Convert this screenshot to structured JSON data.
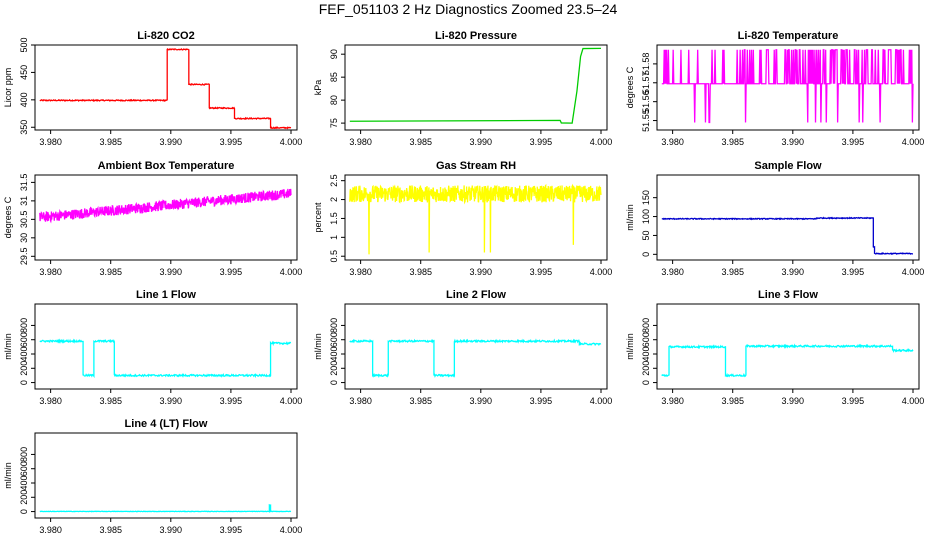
{
  "page": {
    "title": "FEF_051103  2 Hz Diagnostics Zoomed 23.5–24"
  },
  "colors": {
    "red": "#ff0000",
    "green": "#00cc00",
    "magenta": "#ff00ff",
    "yellow": "#ffff00",
    "blue": "#0000cc",
    "cyan": "#00ffff"
  },
  "chart_data": [
    {
      "type": "line",
      "title": "Li-820 CO2",
      "ylabel": "Licor ppm",
      "color": "red",
      "xlim": [
        3.9787,
        4.0005
      ],
      "ylim": [
        345,
        500
      ],
      "xticks": [
        3.98,
        3.985,
        3.99,
        3.995,
        4.0
      ],
      "xtick_labels": [
        "3.980",
        "3.985",
        "3.990",
        "3.995",
        "4.000"
      ],
      "yticks": [
        350,
        400,
        450,
        500
      ],
      "ytick_labels": [
        "350",
        "400",
        "450",
        "500"
      ],
      "noise": 1.0,
      "segments": [
        [
          3.9791,
          3.9897,
          399
        ],
        [
          3.9897,
          3.9915,
          492
        ],
        [
          3.9915,
          3.9932,
          428
        ],
        [
          3.9932,
          3.9953,
          385
        ],
        [
          3.9953,
          3.9983,
          366
        ],
        [
          3.9983,
          4.0,
          349
        ]
      ]
    },
    {
      "type": "line",
      "title": "Li-820 Pressure",
      "ylabel": "kPa",
      "color": "green",
      "xlim": [
        3.9787,
        4.0005
      ],
      "ylim": [
        73.5,
        92
      ],
      "xticks": [
        3.98,
        3.985,
        3.99,
        3.995,
        4.0
      ],
      "xtick_labels": [
        "3.980",
        "3.985",
        "3.990",
        "3.995",
        "4.000"
      ],
      "yticks": [
        75,
        80,
        85,
        90
      ],
      "ytick_labels": [
        "75",
        "80",
        "85",
        "90"
      ],
      "noise": 0.1,
      "series": [
        {
          "x": 3.9791,
          "y": 75.5
        },
        {
          "x": 3.9966,
          "y": 75.5
        },
        {
          "x": 3.9967,
          "y": 75.1
        },
        {
          "x": 3.9976,
          "y": 75.1
        },
        {
          "x": 3.998,
          "y": 82
        },
        {
          "x": 3.9983,
          "y": 89.5
        },
        {
          "x": 3.9985,
          "y": 91.3
        },
        {
          "x": 4.0,
          "y": 91.3
        }
      ]
    },
    {
      "type": "line",
      "title": "Li-820 Temperature",
      "ylabel": "degrees C",
      "color": "magenta",
      "xlim": [
        3.9787,
        4.0005
      ],
      "ylim": [
        51.545,
        51.59
      ],
      "xticks": [
        3.98,
        3.985,
        3.99,
        3.995,
        4.0
      ],
      "xtick_labels": [
        "3.980",
        "3.985",
        "3.990",
        "3.995",
        "4.000"
      ],
      "yticks": [
        51.55,
        51.56,
        51.57,
        51.58
      ],
      "ytick_labels": [
        "51.55",
        "51.56",
        "51.57",
        "51.58"
      ],
      "levels": [
        51.549,
        51.5695,
        51.5875
      ]
    },
    {
      "type": "line",
      "title": "Ambient Box Temperature",
      "ylabel": "degrees C",
      "color": "magenta",
      "xlim": [
        3.9787,
        4.0005
      ],
      "ylim": [
        29.4,
        31.7
      ],
      "xticks": [
        3.98,
        3.985,
        3.99,
        3.995,
        4.0
      ],
      "xtick_labels": [
        "3.980",
        "3.985",
        "3.990",
        "3.995",
        "4.000"
      ],
      "yticks": [
        29.5,
        30.0,
        30.5,
        31.0,
        31.5
      ],
      "ytick_labels": [
        "29.5",
        "30",
        "30.5",
        "31",
        "31.5"
      ],
      "trend": [
        [
          3.9791,
          30.55
        ],
        [
          4.0,
          31.2
        ]
      ],
      "noise": 0.28
    },
    {
      "type": "line",
      "title": "Gas Stream RH",
      "ylabel": "percent",
      "color": "yellow",
      "xlim": [
        3.9787,
        4.0005
      ],
      "ylim": [
        0.4,
        2.65
      ],
      "xticks": [
        3.98,
        3.985,
        3.99,
        3.995,
        4.0
      ],
      "xtick_labels": [
        "3.980",
        "3.985",
        "3.990",
        "3.995",
        "4.000"
      ],
      "yticks": [
        0.5,
        1.0,
        1.5,
        2.0,
        2.5
      ],
      "ytick_labels": [
        "0.5",
        "1",
        "1.5",
        "2",
        "2.5"
      ],
      "trend": [
        [
          3.9791,
          2.15
        ],
        [
          4.0,
          2.15
        ]
      ],
      "noise": 0.45,
      "spikes": [
        [
          3.9807,
          0.55
        ],
        [
          3.9857,
          0.6
        ],
        [
          3.9903,
          0.6
        ],
        [
          3.9908,
          0.6
        ],
        [
          3.9977,
          0.8
        ]
      ]
    },
    {
      "type": "line",
      "title": "Sample Flow",
      "ylabel": "ml/min",
      "color": "blue",
      "xlim": [
        3.9787,
        4.0005
      ],
      "ylim": [
        -15,
        210
      ],
      "xticks": [
        3.98,
        3.985,
        3.99,
        3.995,
        4.0
      ],
      "xtick_labels": [
        "3.980",
        "3.985",
        "3.990",
        "3.995",
        "4.000"
      ],
      "yticks": [
        0,
        50,
        100,
        150
      ],
      "ytick_labels": [
        "0",
        "50",
        "100",
        "150"
      ],
      "noise": 1.2,
      "segments": [
        [
          3.9791,
          3.992,
          94
        ],
        [
          3.992,
          3.9967,
          96
        ],
        [
          3.9967,
          3.9968,
          20
        ],
        [
          3.9968,
          4.0,
          2
        ]
      ]
    },
    {
      "type": "line",
      "title": "Line 1 Flow",
      "ylabel": "ml/min",
      "color": "cyan",
      "xlim": [
        3.9787,
        4.0005
      ],
      "ylim": [
        -90,
        1100
      ],
      "xticks": [
        3.98,
        3.985,
        3.99,
        3.995,
        4.0
      ],
      "xtick_labels": [
        "3.980",
        "3.985",
        "3.990",
        "3.995",
        "4.000"
      ],
      "yticks": [
        0,
        200,
        400,
        600,
        800
      ],
      "ytick_labels": [
        "0",
        "200",
        "400",
        "600",
        "800"
      ],
      "noise": 12,
      "segments": [
        [
          3.9791,
          3.9827,
          580
        ],
        [
          3.9827,
          3.9836,
          100
        ],
        [
          3.9836,
          3.9853,
          580
        ],
        [
          3.9853,
          3.9983,
          100
        ],
        [
          3.9983,
          4.0,
          550
        ]
      ]
    },
    {
      "type": "line",
      "title": "Line 2 Flow",
      "ylabel": "ml/min",
      "color": "cyan",
      "xlim": [
        3.9787,
        4.0005
      ],
      "ylim": [
        -90,
        1100
      ],
      "xticks": [
        3.98,
        3.985,
        3.99,
        3.995,
        4.0
      ],
      "xtick_labels": [
        "3.980",
        "3.985",
        "3.990",
        "3.995",
        "4.000"
      ],
      "yticks": [
        0,
        200,
        400,
        600,
        800
      ],
      "ytick_labels": [
        "0",
        "200",
        "400",
        "600",
        "800"
      ],
      "noise": 12,
      "segments": [
        [
          3.9791,
          3.981,
          580
        ],
        [
          3.981,
          3.9823,
          100
        ],
        [
          3.9823,
          3.9861,
          580
        ],
        [
          3.9861,
          3.9878,
          100
        ],
        [
          3.9878,
          3.9982,
          580
        ],
        [
          3.9982,
          4.0,
          540
        ]
      ]
    },
    {
      "type": "line",
      "title": "Line 3 Flow",
      "ylabel": "ml/min",
      "color": "cyan",
      "xlim": [
        3.9787,
        4.0005
      ],
      "ylim": [
        -90,
        1100
      ],
      "xticks": [
        3.98,
        3.985,
        3.99,
        3.995,
        4.0
      ],
      "xtick_labels": [
        "3.980",
        "3.985",
        "3.990",
        "3.995",
        "4.000"
      ],
      "yticks": [
        0,
        200,
        400,
        600,
        800
      ],
      "ytick_labels": [
        "0",
        "200",
        "400",
        "600",
        "800"
      ],
      "noise": 12,
      "segments": [
        [
          3.9791,
          3.9797,
          100
        ],
        [
          3.9797,
          3.981,
          500
        ],
        [
          3.981,
          3.9844,
          500
        ],
        [
          3.9844,
          3.9861,
          100
        ],
        [
          3.9861,
          3.9983,
          510
        ],
        [
          3.9983,
          4.0,
          450
        ]
      ]
    },
    {
      "type": "line",
      "title": "Line 4 (LT) Flow",
      "ylabel": "ml/min",
      "color": "cyan",
      "xlim": [
        3.9787,
        4.0005
      ],
      "ylim": [
        -90,
        1100
      ],
      "xticks": [
        3.98,
        3.985,
        3.99,
        3.995,
        4.0
      ],
      "xtick_labels": [
        "3.980",
        "3.985",
        "3.990",
        "3.995",
        "4.000"
      ],
      "yticks": [
        0,
        200,
        400,
        600,
        800
      ],
      "ytick_labels": [
        "0",
        "200",
        "400",
        "600",
        "800"
      ],
      "noise": 3,
      "segments": [
        [
          3.9791,
          3.9982,
          2
        ],
        [
          3.9982,
          3.9983,
          90
        ],
        [
          3.9983,
          4.0,
          2
        ]
      ]
    }
  ]
}
